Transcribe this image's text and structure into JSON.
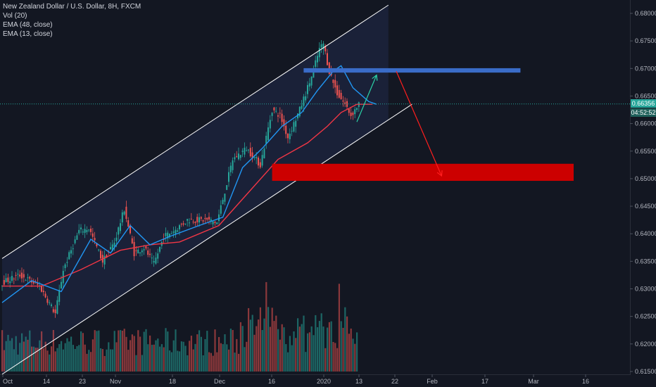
{
  "legend": {
    "title": "New Zealand Dollar / U.S. Dollar, 8H, FXCM",
    "vol": "Vol (20)",
    "ema_slow": "EMA (48, close)",
    "ema_fast": "EMA (13, close)"
  },
  "price_tag": {
    "price": "0.66356",
    "countdown": "04:52:52"
  },
  "colors": {
    "background": "#131722",
    "up": "#26a69a",
    "down": "#ef5350",
    "ema_slow": "#f23645",
    "ema_fast": "#2196f3",
    "channel": "#ffffff",
    "resistance_zone": "#3a6cc8",
    "support_zone": "#cc0000",
    "bearish_arrow": "#ff1e1e",
    "bullish_arrow": "#2ad4a8",
    "last_price": "#26a69a"
  },
  "chart_data": {
    "type": "candlestick",
    "symbol": "New Zealand Dollar / U.S. Dollar",
    "timeframe": "8H",
    "source": "FXCM",
    "ylim": [
      0.615,
      0.681
    ],
    "y_ticks": [
      "0.68000",
      "0.67500",
      "0.67000",
      "0.66500",
      "0.66000",
      "0.65500",
      "0.65000",
      "0.64500",
      "0.64000",
      "0.63500",
      "0.63000",
      "0.62500",
      "0.62000",
      "0.61500"
    ],
    "x_ticks": [
      "Oct",
      "14",
      "23",
      "Nov",
      "18",
      "Dec",
      "16",
      "2020",
      "13",
      "22",
      "Feb",
      "17",
      "Mar",
      "16"
    ],
    "bars": 170,
    "last_price": 0.66356,
    "price_path": [
      {
        "bar": 0,
        "price": 0.631
      },
      {
        "bar": 10,
        "price": 0.6325
      },
      {
        "bar": 20,
        "price": 0.6305
      },
      {
        "bar": 28,
        "price": 0.6255
      },
      {
        "bar": 32,
        "price": 0.6335
      },
      {
        "bar": 40,
        "price": 0.6405
      },
      {
        "bar": 45,
        "price": 0.641
      },
      {
        "bar": 52,
        "price": 0.635
      },
      {
        "bar": 58,
        "price": 0.6385
      },
      {
        "bar": 63,
        "price": 0.6445
      },
      {
        "bar": 68,
        "price": 0.6365
      },
      {
        "bar": 73,
        "price": 0.6375
      },
      {
        "bar": 78,
        "price": 0.6345
      },
      {
        "bar": 83,
        "price": 0.6395
      },
      {
        "bar": 88,
        "price": 0.6405
      },
      {
        "bar": 95,
        "price": 0.6425
      },
      {
        "bar": 105,
        "price": 0.6425
      },
      {
        "bar": 110,
        "price": 0.642
      },
      {
        "bar": 118,
        "price": 0.6535
      },
      {
        "bar": 125,
        "price": 0.6555
      },
      {
        "bar": 132,
        "price": 0.6525
      },
      {
        "bar": 138,
        "price": 0.6625
      },
      {
        "bar": 142,
        "price": 0.6615
      },
      {
        "bar": 146,
        "price": 0.6575
      },
      {
        "bar": 152,
        "price": 0.6625
      },
      {
        "bar": 158,
        "price": 0.6685
      },
      {
        "bar": 162,
        "price": 0.6735
      },
      {
        "bar": 164,
        "price": 0.6745
      },
      {
        "bar": 167,
        "price": 0.6695
      },
      {
        "bar": 171,
        "price": 0.6655
      },
      {
        "bar": 175,
        "price": 0.6635
      },
      {
        "bar": 178,
        "price": 0.6615
      },
      {
        "bar": 180,
        "price": 0.6625
      },
      {
        "bar": 182,
        "price": 0.66356
      }
    ],
    "ema_slow_path": [
      {
        "bar": 0,
        "price": 0.6305
      },
      {
        "bar": 20,
        "price": 0.6305
      },
      {
        "bar": 40,
        "price": 0.6335
      },
      {
        "bar": 60,
        "price": 0.637
      },
      {
        "bar": 75,
        "price": 0.638
      },
      {
        "bar": 90,
        "price": 0.6385
      },
      {
        "bar": 110,
        "price": 0.6415
      },
      {
        "bar": 125,
        "price": 0.6475
      },
      {
        "bar": 140,
        "price": 0.6535
      },
      {
        "bar": 155,
        "price": 0.6565
      },
      {
        "bar": 165,
        "price": 0.6595
      },
      {
        "bar": 172,
        "price": 0.662
      },
      {
        "bar": 180,
        "price": 0.6635
      },
      {
        "bar": 188,
        "price": 0.6635
      }
    ],
    "ema_fast_path": [
      {
        "bar": 0,
        "price": 0.6275
      },
      {
        "bar": 15,
        "price": 0.6315
      },
      {
        "bar": 30,
        "price": 0.6295
      },
      {
        "bar": 45,
        "price": 0.639
      },
      {
        "bar": 55,
        "price": 0.6365
      },
      {
        "bar": 65,
        "price": 0.6415
      },
      {
        "bar": 75,
        "price": 0.638
      },
      {
        "bar": 85,
        "price": 0.6395
      },
      {
        "bar": 100,
        "price": 0.6415
      },
      {
        "bar": 112,
        "price": 0.643
      },
      {
        "bar": 122,
        "price": 0.652
      },
      {
        "bar": 132,
        "price": 0.6555
      },
      {
        "bar": 142,
        "price": 0.6595
      },
      {
        "bar": 152,
        "price": 0.662
      },
      {
        "bar": 160,
        "price": 0.666
      },
      {
        "bar": 168,
        "price": 0.6695
      },
      {
        "bar": 172,
        "price": 0.6705
      },
      {
        "bar": 178,
        "price": 0.6665
      },
      {
        "bar": 186,
        "price": 0.664
      },
      {
        "bar": 190,
        "price": 0.6635
      }
    ],
    "channel": {
      "upper": [
        {
          "bar": 0,
          "price": 0.6355
        },
        {
          "bar": 196,
          "price": 0.6815
        }
      ],
      "lower": [
        {
          "bar": 0,
          "price": 0.6145
        },
        {
          "bar": 208,
          "price": 0.6635
        }
      ]
    },
    "resistance_zone": {
      "from_bar": 153,
      "to_bar": 263,
      "top": 0.67005,
      "bottom": 0.66925
    },
    "support_zone": {
      "from_bar": 137,
      "to_bar": 290,
      "top": 0.6527,
      "bottom": 0.6496
    },
    "bearish_projection": [
      {
        "bar": 200,
        "price": 0.6695
      },
      {
        "bar": 223,
        "price": 0.6505
      }
    ],
    "bullish_projection": [
      {
        "bar": 180,
        "price": 0.6603
      },
      {
        "bar": 190,
        "price": 0.6688
      }
    ]
  }
}
